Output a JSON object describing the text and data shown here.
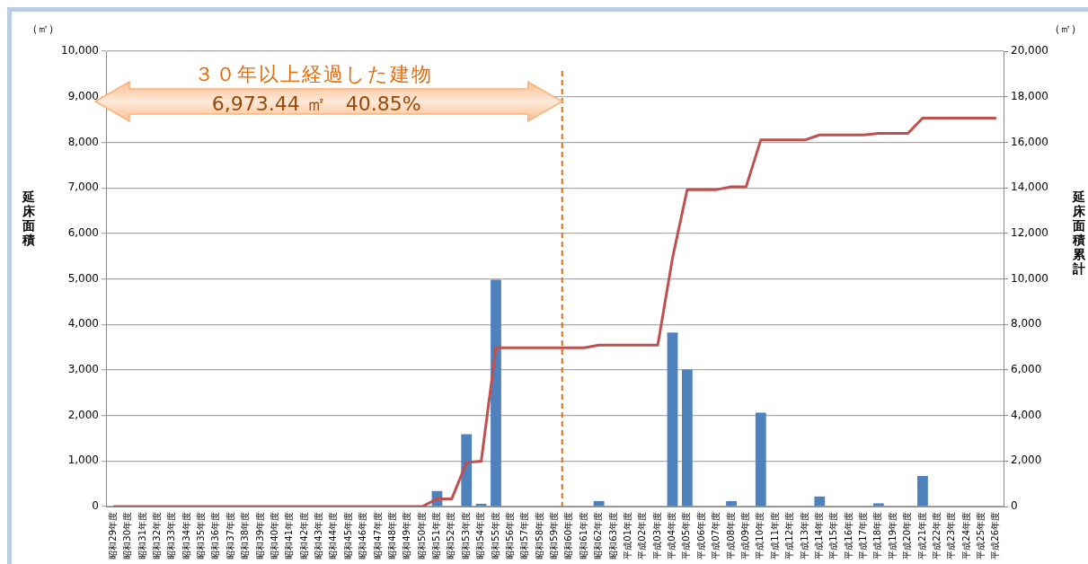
{
  "chart_data": {
    "type": "bar",
    "categories": [
      "昭和29年度",
      "昭和30年度",
      "昭和31年度",
      "昭和32年度",
      "昭和33年度",
      "昭和34年度",
      "昭和35年度",
      "昭和36年度",
      "昭和37年度",
      "昭和38年度",
      "昭和39年度",
      "昭和40年度",
      "昭和41年度",
      "昭和42年度",
      "昭和43年度",
      "昭和44年度",
      "昭和45年度",
      "昭和46年度",
      "昭和47年度",
      "昭和48年度",
      "昭和49年度",
      "昭和50年度",
      "昭和51年度",
      "昭和52年度",
      "昭和53年度",
      "昭和54年度",
      "昭和55年度",
      "昭和56年度",
      "昭和57年度",
      "昭和58年度",
      "昭和59年度",
      "昭和60年度",
      "昭和61年度",
      "昭和62年度",
      "昭和63年度",
      "平成01年度",
      "平成02年度",
      "平成03年度",
      "平成04年度",
      "平成05年度",
      "平成06年度",
      "平成07年度",
      "平成08年度",
      "平成09年度",
      "平成10年度",
      "平成11年度",
      "平成12年度",
      "平成13年度",
      "平成14年度",
      "平成15年度",
      "平成16年度",
      "平成17年度",
      "平成18年度",
      "平成19年度",
      "平成20年度",
      "平成21年度",
      "平成22年度",
      "平成23年度",
      "平成24年度",
      "平成25年度",
      "平成26年度"
    ],
    "series": [
      {
        "color": "#4f81bd",
        "values": [
          0,
          0,
          0,
          0,
          0,
          0,
          0,
          0,
          0,
          0,
          0,
          0,
          0,
          0,
          0,
          0,
          0,
          0,
          0,
          0,
          0,
          0,
          340,
          0,
          1590,
          60,
          4980,
          0,
          0,
          0,
          0,
          0,
          0,
          120,
          0,
          0,
          0,
          0,
          3820,
          3010,
          0,
          0,
          120,
          0,
          2060,
          0,
          0,
          0,
          220,
          0,
          0,
          0,
          70,
          0,
          0,
          670,
          0,
          0,
          0,
          0,
          0
        ]
      },
      {
        "type": "line",
        "axis": "y2",
        "color": "#c0504d",
        "values": [
          0,
          0,
          0,
          0,
          0,
          0,
          0,
          0,
          0,
          0,
          0,
          0,
          0,
          0,
          0,
          0,
          0,
          0,
          0,
          0,
          0,
          0,
          340,
          340,
          1930,
          1990,
          6970,
          6970,
          6970,
          6970,
          6970,
          6970,
          6970,
          7090,
          7090,
          7090,
          7090,
          7090,
          10910,
          13920,
          13920,
          13920,
          14040,
          14040,
          16100,
          16100,
          16100,
          16100,
          16320,
          16320,
          16320,
          16320,
          16390,
          16390,
          16390,
          17060,
          17060,
          17060,
          17060,
          17060,
          17060
        ]
      }
    ],
    "ylim": [
      0,
      10000
    ],
    "yticks": [
      {
        "value": 0,
        "label": "0"
      },
      {
        "value": 1000,
        "label": "1,000"
      },
      {
        "value": 2000,
        "label": "2,000"
      },
      {
        "value": 3000,
        "label": "3,000"
      },
      {
        "value": 4000,
        "label": "4,000"
      },
      {
        "value": 5000,
        "label": "5,000"
      },
      {
        "value": 6000,
        "label": "6,000"
      },
      {
        "value": 7000,
        "label": "7,000"
      },
      {
        "value": 8000,
        "label": "8,000"
      },
      {
        "value": 9000,
        "label": "9,000"
      },
      {
        "value": 10000,
        "label": "10,000"
      }
    ],
    "y2lim": [
      0,
      20000
    ],
    "y2ticks": [
      {
        "value": 0,
        "label": "0"
      },
      {
        "value": 2000,
        "label": "2,000"
      },
      {
        "value": 4000,
        "label": "4,000"
      },
      {
        "value": 6000,
        "label": "6,000"
      },
      {
        "value": 8000,
        "label": "8,000"
      },
      {
        "value": 10000,
        "label": "10,000"
      },
      {
        "value": 12000,
        "label": "12,000"
      },
      {
        "value": 14000,
        "label": "14,000"
      },
      {
        "value": 16000,
        "label": "16,000"
      },
      {
        "value": 18000,
        "label": "18,000"
      },
      {
        "value": 20000,
        "label": "20,000"
      }
    ],
    "ylabel": "延床面積",
    "y2label": "延床面積累計",
    "ref_lines": [
      {
        "axis": "x",
        "value": "昭和60年度",
        "color": "#e46c0a",
        "line_style": "dashed"
      }
    ],
    "annotations": [
      "３０年以上経過した建物",
      "6,973.44 ㎡　40.85%",
      "（㎡）",
      "（㎡）"
    ],
    "grid": "y",
    "legend": false,
    "marker": "none"
  }
}
